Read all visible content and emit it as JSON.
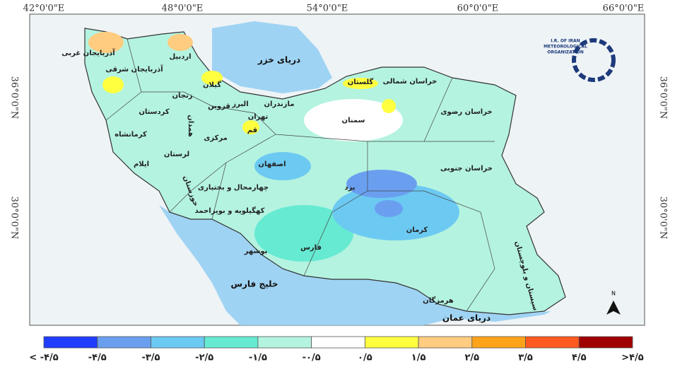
{
  "longitude_labels": [
    "42°0'0\"E",
    "48°0'0\"E",
    "54°0'0\"E",
    "60°0'0\"E",
    "66°0'0\"E"
  ],
  "latitude_labels": [
    "36°0'0\"N",
    "30°0'0\"N"
  ],
  "provinces": [
    "آذربایجان غربی",
    "اردبیل",
    "آذربایجان شرقی",
    "زنجان",
    "گیلان",
    "قزوین",
    "البرز",
    "مازندران",
    "تهران",
    "قم",
    "کردستان",
    "همدان",
    "کرمانشاه",
    "مرکزی",
    "لرستان",
    "ایلام",
    "اصفهان",
    "خوزستان",
    "چهارمحال و بختیاری",
    "کهگیلویه و بویراحمد",
    "فارس",
    "بوشهر",
    "یزد",
    "کرمان",
    "سمنان",
    "گلستان",
    "خراسان شمالی",
    "خراسان رضوی",
    "خراسان جنوبی",
    "سیستان و بلوچستان",
    "هرمزگان"
  ],
  "water_bodies": [
    "دریای خزر",
    "خلیج فارس",
    "دریای عمان"
  ],
  "logo": {
    "lines": [
      "I.R. OF IRAN",
      "METEOROLOGICAL",
      "ORGANIZATION"
    ]
  },
  "north_label": "N",
  "legend": {
    "labels": [
      "< -۴/۵",
      "-۴/۵",
      "-۳/۵",
      "-۲/۵",
      "-۱/۵",
      "-۰/۵",
      "۰/۵",
      "۱/۵",
      "۲/۵",
      "۳/۵",
      "۴/۵",
      ">۴/۵"
    ],
    "colors": [
      "#1f3cff",
      "#6a9ff0",
      "#6cc9f2",
      "#66ead2",
      "#b4f3e0",
      "#ffffff",
      "#ffff40",
      "#ffcc80",
      "#ffa31a",
      "#ff5a1f",
      "#a00000"
    ]
  }
}
